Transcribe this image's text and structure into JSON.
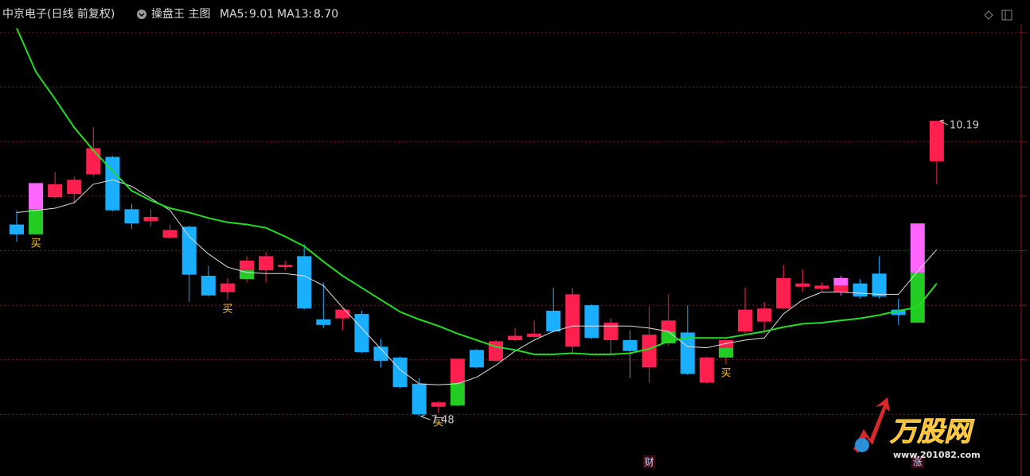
{
  "chart_data": {
    "type": "candlestick",
    "title": "中京电子(日线 前复权)",
    "subtitle": "操盘王 主图",
    "ylim": [
      7.0,
      11.08
    ],
    "gridlines": [
      7.5,
      8.0,
      8.5,
      9.0,
      9.5,
      10.0,
      10.5,
      11.0
    ],
    "grid": true,
    "up_color": "#ff2050",
    "down_color": "#1aaeff",
    "candles": [
      {
        "open": 9.24,
        "high": 9.37,
        "low": 9.08,
        "close": 9.15
      },
      {
        "open": 9.15,
        "high": 9.62,
        "low": 9.15,
        "close": 9.62,
        "split": 9.38,
        "split_colors": [
          "#ff66ff",
          "#22cc22"
        ],
        "signal": "买"
      },
      {
        "open": 9.49,
        "high": 9.72,
        "low": 9.48,
        "close": 9.61
      },
      {
        "open": 9.52,
        "high": 9.68,
        "low": 9.43,
        "close": 9.65
      },
      {
        "open": 9.7,
        "high": 10.13,
        "low": 9.68,
        "close": 9.94
      },
      {
        "open": 9.86,
        "high": 9.87,
        "low": 9.36,
        "close": 9.37
      },
      {
        "open": 9.38,
        "high": 9.43,
        "low": 9.2,
        "close": 9.25
      },
      {
        "open": 9.27,
        "high": 9.38,
        "low": 9.22,
        "close": 9.31
      },
      {
        "open": 9.12,
        "high": 9.24,
        "low": 9.11,
        "close": 9.19
      },
      {
        "open": 9.22,
        "high": 9.23,
        "low": 8.53,
        "close": 8.78
      },
      {
        "open": 8.77,
        "high": 8.86,
        "low": 8.58,
        "close": 8.59
      },
      {
        "open": 8.62,
        "high": 8.75,
        "low": 8.55,
        "close": 8.7,
        "signal": "买"
      },
      {
        "open": 8.74,
        "high": 8.95,
        "low": 8.71,
        "close": 8.91,
        "split": 8.82,
        "split_colors": [
          "#ff2050",
          "#22cc22"
        ]
      },
      {
        "open": 8.82,
        "high": 8.99,
        "low": 8.71,
        "close": 8.95
      },
      {
        "open": 8.85,
        "high": 8.91,
        "low": 8.82,
        "close": 8.87
      },
      {
        "open": 8.95,
        "high": 9.06,
        "low": 8.46,
        "close": 8.47
      },
      {
        "open": 8.37,
        "high": 8.71,
        "low": 8.29,
        "close": 8.32
      },
      {
        "open": 8.38,
        "high": 8.47,
        "low": 8.27,
        "close": 8.46
      },
      {
        "open": 8.42,
        "high": 8.45,
        "low": 8.06,
        "close": 8.07
      },
      {
        "open": 8.12,
        "high": 8.19,
        "low": 7.93,
        "close": 7.99
      },
      {
        "open": 8.02,
        "high": 8.03,
        "low": 7.74,
        "close": 7.75
      },
      {
        "open": 7.78,
        "high": 7.83,
        "low": 7.48,
        "close": 7.5
      },
      {
        "open": 7.57,
        "high": 7.62,
        "low": 7.51,
        "close": 7.61,
        "signal": "买"
      },
      {
        "open": 7.58,
        "high": 8.01,
        "low": 7.57,
        "close": 8.01,
        "split": 7.79,
        "split_colors": [
          "#ff2050",
          "#22cc22"
        ]
      },
      {
        "open": 8.09,
        "high": 8.1,
        "low": 7.92,
        "close": 7.93
      },
      {
        "open": 7.99,
        "high": 8.18,
        "low": 7.98,
        "close": 8.17
      },
      {
        "open": 8.18,
        "high": 8.29,
        "low": 8.17,
        "close": 8.22
      },
      {
        "open": 8.21,
        "high": 8.36,
        "low": 8.2,
        "close": 8.24
      },
      {
        "open": 8.45,
        "high": 8.66,
        "low": 8.25,
        "close": 8.26
      },
      {
        "open": 8.12,
        "high": 8.66,
        "low": 8.05,
        "close": 8.6
      },
      {
        "open": 8.5,
        "high": 8.51,
        "low": 8.19,
        "close": 8.2
      },
      {
        "open": 8.18,
        "high": 8.38,
        "low": 8.05,
        "close": 8.34
      },
      {
        "open": 8.18,
        "high": 8.27,
        "low": 7.83,
        "close": 8.08
      },
      {
        "open": 7.93,
        "high": 8.49,
        "low": 7.79,
        "close": 8.23,
        "event": "财"
      },
      {
        "open": 8.15,
        "high": 8.6,
        "low": 8.13,
        "close": 8.36,
        "split": 8.26,
        "split_colors": [
          "#ff2050",
          "#22cc22"
        ]
      },
      {
        "open": 8.25,
        "high": 8.5,
        "low": 7.86,
        "close": 7.87
      },
      {
        "open": 7.79,
        "high": 8.03,
        "low": 7.78,
        "close": 8.02
      },
      {
        "open": 8.02,
        "high": 8.19,
        "low": 7.96,
        "close": 8.18,
        "split": 8.11,
        "split_colors": [
          "#ff2050",
          "#22cc22"
        ],
        "signal": "买"
      },
      {
        "open": 8.26,
        "high": 8.66,
        "low": 8.24,
        "close": 8.46
      },
      {
        "open": 8.35,
        "high": 8.53,
        "low": 8.24,
        "close": 8.47
      },
      {
        "open": 8.47,
        "high": 8.87,
        "low": 8.46,
        "close": 8.75
      },
      {
        "open": 8.67,
        "high": 8.83,
        "low": 8.62,
        "close": 8.7
      },
      {
        "open": 8.65,
        "high": 8.71,
        "low": 8.63,
        "close": 8.68
      },
      {
        "open": 8.62,
        "high": 8.77,
        "low": 8.59,
        "close": 8.75,
        "split": 8.68,
        "split_colors": [
          "#ff66ff",
          "#ff2050"
        ]
      },
      {
        "open": 8.7,
        "high": 8.74,
        "low": 8.56,
        "close": 8.58
      },
      {
        "open": 8.79,
        "high": 8.95,
        "low": 8.56,
        "close": 8.58
      },
      {
        "open": 8.46,
        "high": 8.56,
        "low": 8.32,
        "close": 8.41
      },
      {
        "open": 8.34,
        "high": 9.25,
        "low": 8.34,
        "close": 9.25,
        "split": 8.8,
        "split_colors": [
          "#ff66ff",
          "#22cc22"
        ],
        "event": "涨"
      },
      {
        "open": 9.82,
        "high": 10.19,
        "low": 9.61,
        "close": 10.19
      }
    ],
    "series": [
      {
        "name": "MA5:",
        "color": "#e0e0e0",
        "last_label": "9.01",
        "values": [
          9.35,
          9.37,
          9.39,
          9.44,
          9.61,
          9.65,
          9.59,
          9.48,
          9.37,
          9.13,
          8.97,
          8.85,
          8.8,
          8.79,
          8.79,
          8.77,
          8.68,
          8.48,
          8.29,
          8.1,
          7.91,
          7.78,
          7.77,
          7.78,
          7.84,
          7.95,
          8.08,
          8.18,
          8.26,
          8.31,
          8.31,
          8.31,
          8.31,
          8.29,
          8.26,
          8.12,
          8.11,
          8.15,
          8.18,
          8.2,
          8.42,
          8.55,
          8.62,
          8.62,
          8.61,
          8.6,
          8.6,
          8.81,
          9.01
        ]
      },
      {
        "name": "MA13:",
        "color": "#22dd22",
        "last_label": "8.70",
        "values": [
          11.04,
          10.64,
          10.39,
          10.13,
          9.92,
          9.73,
          9.55,
          9.46,
          9.39,
          9.35,
          9.3,
          9.26,
          9.24,
          9.21,
          9.13,
          9.04,
          8.9,
          8.77,
          8.66,
          8.55,
          8.44,
          8.37,
          8.31,
          8.24,
          8.18,
          8.12,
          8.09,
          8.05,
          8.05,
          8.06,
          8.05,
          8.05,
          8.06,
          8.1,
          8.17,
          8.2,
          8.2,
          8.2,
          8.23,
          8.26,
          8.3,
          8.33,
          8.34,
          8.36,
          8.38,
          8.41,
          8.45,
          8.48,
          8.7
        ]
      }
    ],
    "watermark": {
      "title": "万股网",
      "url": "www.201082.com"
    }
  }
}
